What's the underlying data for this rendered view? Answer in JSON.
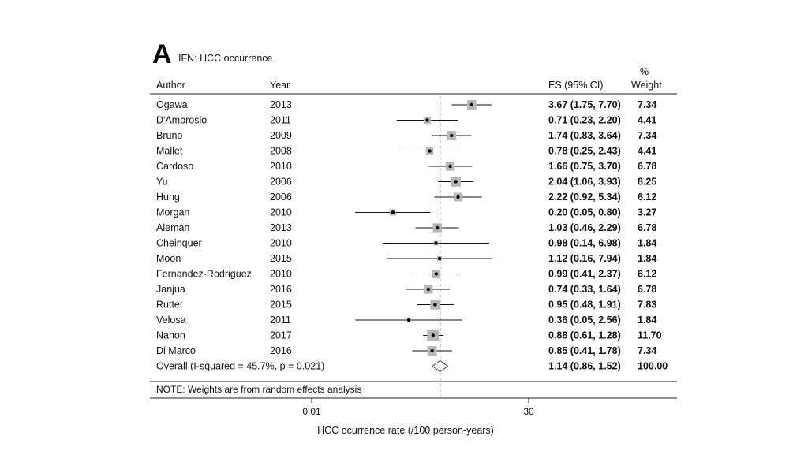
{
  "panel_letter": "A",
  "panel_title": "IFN: HCC occurrence",
  "header": {
    "author": "Author",
    "year": "Year",
    "es": "ES (95% CI)",
    "weight_pct": "%",
    "weight": "Weight"
  },
  "footnote": "NOTE: Weights are from random effects analysis",
  "chart_data": {
    "type": "forest",
    "xlabel": "HCC ocurrence rate (/100 person-years)",
    "x_ticks": [
      "0.01",
      "30"
    ],
    "x_scale": "log",
    "xlim": [
      0.01,
      30
    ],
    "reference_line": 1.14,
    "studies": [
      {
        "author": "Ogawa",
        "year": "2013",
        "es": 3.67,
        "lo": 1.75,
        "hi": 7.7,
        "es_text": "3.67 (1.75, 7.70)",
        "weight": "7.34"
      },
      {
        "author": "D'Ambrosio",
        "year": "2011",
        "es": 0.71,
        "lo": 0.23,
        "hi": 2.2,
        "es_text": "0.71 (0.23, 2.20)",
        "weight": "4.41"
      },
      {
        "author": "Bruno",
        "year": "2009",
        "es": 1.74,
        "lo": 0.83,
        "hi": 3.64,
        "es_text": "1.74 (0.83, 3.64)",
        "weight": "7.34"
      },
      {
        "author": "Mallet",
        "year": "2008",
        "es": 0.78,
        "lo": 0.25,
        "hi": 2.43,
        "es_text": "0.78 (0.25, 2.43)",
        "weight": "4.41"
      },
      {
        "author": "Cardoso",
        "year": "2010",
        "es": 1.66,
        "lo": 0.75,
        "hi": 3.7,
        "es_text": "1.66 (0.75, 3.70)",
        "weight": "6.78"
      },
      {
        "author": "Yu",
        "year": "2006",
        "es": 2.04,
        "lo": 1.06,
        "hi": 3.93,
        "es_text": "2.04 (1.06, 3.93)",
        "weight": "8.25"
      },
      {
        "author": "Hung",
        "year": "2006",
        "es": 2.22,
        "lo": 0.92,
        "hi": 5.34,
        "es_text": "2.22 (0.92, 5.34)",
        "weight": "6.12"
      },
      {
        "author": "Morgan",
        "year": "2010",
        "es": 0.2,
        "lo": 0.05,
        "hi": 0.8,
        "es_text": "0.20 (0.05, 0.80)",
        "weight": "3.27"
      },
      {
        "author": "Aleman",
        "year": "2013",
        "es": 1.03,
        "lo": 0.46,
        "hi": 2.29,
        "es_text": "1.03 (0.46, 2.29)",
        "weight": "6.78"
      },
      {
        "author": "Cheinquer",
        "year": "2010",
        "es": 0.98,
        "lo": 0.14,
        "hi": 6.98,
        "es_text": "0.98 (0.14, 6.98)",
        "weight": "1.84"
      },
      {
        "author": "Moon",
        "year": "2015",
        "es": 1.12,
        "lo": 0.16,
        "hi": 7.94,
        "es_text": "1.12 (0.16, 7.94)",
        "weight": "1.84"
      },
      {
        "author": "Fernandez-Rodriguez",
        "year": "2010",
        "es": 0.99,
        "lo": 0.41,
        "hi": 2.37,
        "es_text": "0.99 (0.41, 2.37)",
        "weight": "6.12"
      },
      {
        "author": "Janjua",
        "year": "2016",
        "es": 0.74,
        "lo": 0.33,
        "hi": 1.64,
        "es_text": "0.74 (0.33, 1.64)",
        "weight": "6.78"
      },
      {
        "author": "Rutter",
        "year": "2015",
        "es": 0.95,
        "lo": 0.48,
        "hi": 1.91,
        "es_text": "0.95 (0.48, 1.91)",
        "weight": "7.83"
      },
      {
        "author": "Velosa",
        "year": "2011",
        "es": 0.36,
        "lo": 0.05,
        "hi": 2.56,
        "es_text": "0.36 (0.05, 2.56)",
        "weight": "1.84"
      },
      {
        "author": "Nahon",
        "year": "2017",
        "es": 0.88,
        "lo": 0.61,
        "hi": 1.28,
        "es_text": "0.88 (0.61, 1.28)",
        "weight": "11.70"
      },
      {
        "author": "Di Marco",
        "year": "2016",
        "es": 0.85,
        "lo": 0.41,
        "hi": 1.78,
        "es_text": "0.85 (0.41, 1.78)",
        "weight": "7.34"
      }
    ],
    "overall": {
      "label": "Overall  (I-squared = 45.7%, p = 0.021)",
      "es": 1.14,
      "lo": 0.86,
      "hi": 1.52,
      "es_text": "1.14 (0.86, 1.52)",
      "weight": "100.00"
    }
  }
}
